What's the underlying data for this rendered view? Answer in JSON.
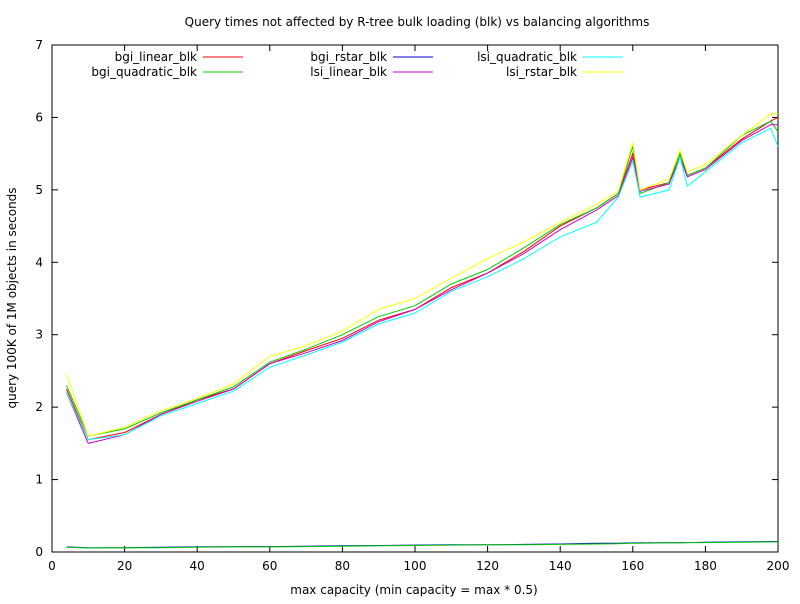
{
  "chart_data": {
    "type": "line",
    "title": "Query times not affected by R-tree bulk loading (blk) vs balancing algorithms",
    "xlabel": "max capacity (min capacity = max * 0.5)",
    "ylabel": "query 100K of 1M objects in seconds",
    "xlim": [
      0,
      200
    ],
    "ylim": [
      0,
      7
    ],
    "xticks": [
      0,
      20,
      40,
      60,
      80,
      100,
      120,
      140,
      160,
      180,
      200
    ],
    "yticks": [
      0,
      1,
      2,
      3,
      4,
      5,
      6,
      7
    ],
    "grid": false,
    "legend_position": "top, 3 columns",
    "x": [
      4,
      10,
      20,
      30,
      40,
      50,
      60,
      70,
      80,
      90,
      100,
      110,
      120,
      130,
      140,
      150,
      156,
      160,
      162,
      170,
      173,
      175,
      180,
      190,
      198,
      200
    ],
    "series": [
      {
        "name": "bgi_linear_blk",
        "color": "#ff0000",
        "values": [
          2.25,
          1.55,
          1.65,
          1.9,
          2.1,
          2.25,
          2.6,
          2.78,
          2.95,
          3.2,
          3.35,
          3.65,
          3.85,
          4.15,
          4.5,
          4.75,
          4.95,
          5.5,
          5.0,
          5.1,
          5.5,
          5.2,
          5.3,
          5.7,
          5.95,
          6.0
        ]
      },
      {
        "name": "bgi_quadratic_blk",
        "color": "#00cc00",
        "values": [
          2.3,
          1.6,
          1.7,
          1.92,
          2.1,
          2.28,
          2.62,
          2.8,
          3.0,
          3.25,
          3.4,
          3.7,
          3.9,
          4.2,
          4.52,
          4.75,
          4.95,
          5.6,
          4.95,
          5.1,
          5.5,
          5.2,
          5.3,
          5.75,
          5.95,
          5.8
        ]
      },
      {
        "name": "bgi_rstar_blk",
        "color": "#0000cc",
        "values": [
          0.07,
          0.06,
          0.06,
          0.065,
          0.07,
          0.075,
          0.075,
          0.08,
          0.085,
          0.09,
          0.095,
          0.1,
          0.1,
          0.105,
          0.11,
          0.12,
          0.12,
          0.125,
          0.125,
          0.13,
          0.13,
          0.13,
          0.135,
          0.14,
          0.145,
          0.145
        ]
      },
      {
        "name": "lsi_linear_blk",
        "color": "#cc00cc",
        "values": [
          2.2,
          1.5,
          1.62,
          1.9,
          2.08,
          2.25,
          2.6,
          2.75,
          2.92,
          3.18,
          3.35,
          3.62,
          3.85,
          4.12,
          4.45,
          4.72,
          4.92,
          5.45,
          4.98,
          5.08,
          5.45,
          5.18,
          5.28,
          5.68,
          5.9,
          5.9
        ]
      },
      {
        "name": "lsi_quadratic_blk",
        "color": "#00ffff",
        "values": [
          2.2,
          1.55,
          1.62,
          1.88,
          2.05,
          2.22,
          2.55,
          2.72,
          2.9,
          3.15,
          3.3,
          3.6,
          3.8,
          4.05,
          4.35,
          4.55,
          4.9,
          5.4,
          4.9,
          5.0,
          5.45,
          5.05,
          5.25,
          5.65,
          5.85,
          5.6
        ]
      },
      {
        "name": "lsi_rstar_blk",
        "color": "#ffff00",
        "values": [
          2.45,
          1.6,
          1.72,
          1.95,
          2.12,
          2.32,
          2.7,
          2.85,
          3.05,
          3.35,
          3.5,
          3.78,
          4.05,
          4.28,
          4.55,
          4.8,
          4.98,
          5.65,
          5.0,
          5.15,
          5.55,
          5.25,
          5.35,
          5.75,
          6.05,
          6.05
        ]
      },
      {
        "name": "",
        "color": "#00cc00",
        "values": [
          0.065,
          0.055,
          0.06,
          0.06,
          0.065,
          0.07,
          0.07,
          0.075,
          0.08,
          0.085,
          0.09,
          0.095,
          0.1,
          0.1,
          0.105,
          0.11,
          0.115,
          0.12,
          0.12,
          0.125,
          0.125,
          0.13,
          0.13,
          0.135,
          0.14,
          0.14
        ]
      }
    ]
  }
}
